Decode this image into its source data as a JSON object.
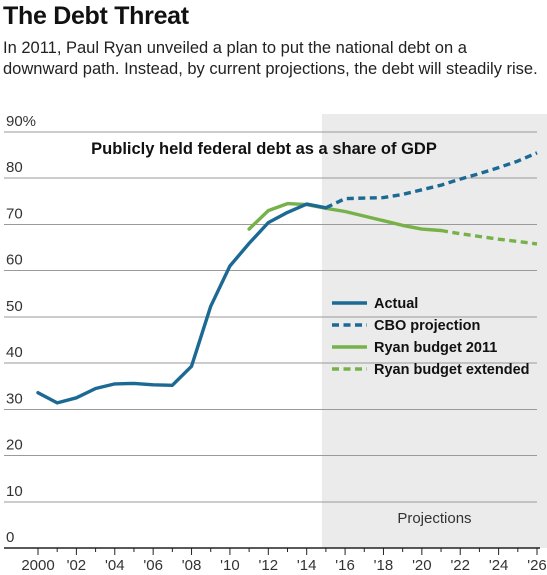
{
  "headline": "The Debt Threat",
  "dek": "In 2011, Paul Ryan unveiled a plan to put the national debt on a downward path. Instead, by current projections, the debt will steadily rise.",
  "colors": {
    "actual": "#1c6a94",
    "cbo": "#1c6a94",
    "ryan": "#76b249",
    "ryan_extended": "#76b249",
    "shade": "#ebebeb",
    "grid": "#9a9a9a"
  },
  "chart_data": {
    "type": "line",
    "title": "Publicly held federal debt as a share of GDP",
    "xlabel": "",
    "ylabel": "",
    "xlim": [
      2000,
      2026
    ],
    "ylim": [
      0,
      90
    ],
    "y_ticks": [
      0,
      10,
      20,
      30,
      40,
      50,
      60,
      70,
      80,
      90
    ],
    "y_tick_labels": [
      "0",
      "10",
      "20",
      "30",
      "40",
      "50",
      "60",
      "70",
      "80",
      "90%"
    ],
    "x_ticks": [
      2000,
      2002,
      2004,
      2006,
      2008,
      2010,
      2012,
      2014,
      2016,
      2018,
      2020,
      2022,
      2024,
      2026
    ],
    "x_tick_labels": [
      "2000",
      "'02",
      "'04",
      "'06",
      "'08",
      "'10",
      "'12",
      "'14",
      "'16",
      "'18",
      "'20",
      "'22",
      "'24",
      "'26"
    ],
    "grid": true,
    "legend_position": "right",
    "shaded_region": {
      "from": 2015,
      "to": 2026,
      "label": "Projections"
    },
    "series": [
      {
        "name": "Actual",
        "style": "solid",
        "color_key": "actual",
        "x": [
          2000,
          2001,
          2002,
          2003,
          2004,
          2005,
          2006,
          2007,
          2008,
          2009,
          2010,
          2011,
          2012,
          2013,
          2014,
          2015
        ],
        "y": [
          33.6,
          31.4,
          32.5,
          34.5,
          35.5,
          35.6,
          35.3,
          35.2,
          39.3,
          52.3,
          61.0,
          65.9,
          70.4,
          72.6,
          74.4,
          73.6
        ]
      },
      {
        "name": "CBO projection",
        "style": "dashed",
        "color_key": "cbo",
        "x": [
          2015,
          2016,
          2017,
          2018,
          2019,
          2020,
          2021,
          2022,
          2023,
          2024,
          2025,
          2026
        ],
        "y": [
          73.6,
          75.6,
          75.7,
          75.8,
          76.5,
          77.5,
          78.5,
          79.8,
          81.0,
          82.3,
          83.7,
          85.5
        ]
      },
      {
        "name": "Ryan budget 2011",
        "style": "solid",
        "color_key": "ryan",
        "x": [
          2011,
          2012,
          2013,
          2014,
          2015,
          2016,
          2017,
          2018,
          2019,
          2020,
          2021
        ],
        "y": [
          69.0,
          73.0,
          74.5,
          74.3,
          73.5,
          72.8,
          71.8,
          70.8,
          69.8,
          69.0,
          68.7
        ]
      },
      {
        "name": "Ryan budget extended",
        "style": "dashed",
        "color_key": "ryan_extended",
        "x": [
          2021,
          2022,
          2023,
          2024,
          2025,
          2026
        ],
        "y": [
          68.7,
          68.0,
          67.4,
          66.8,
          66.3,
          65.8
        ]
      }
    ]
  }
}
